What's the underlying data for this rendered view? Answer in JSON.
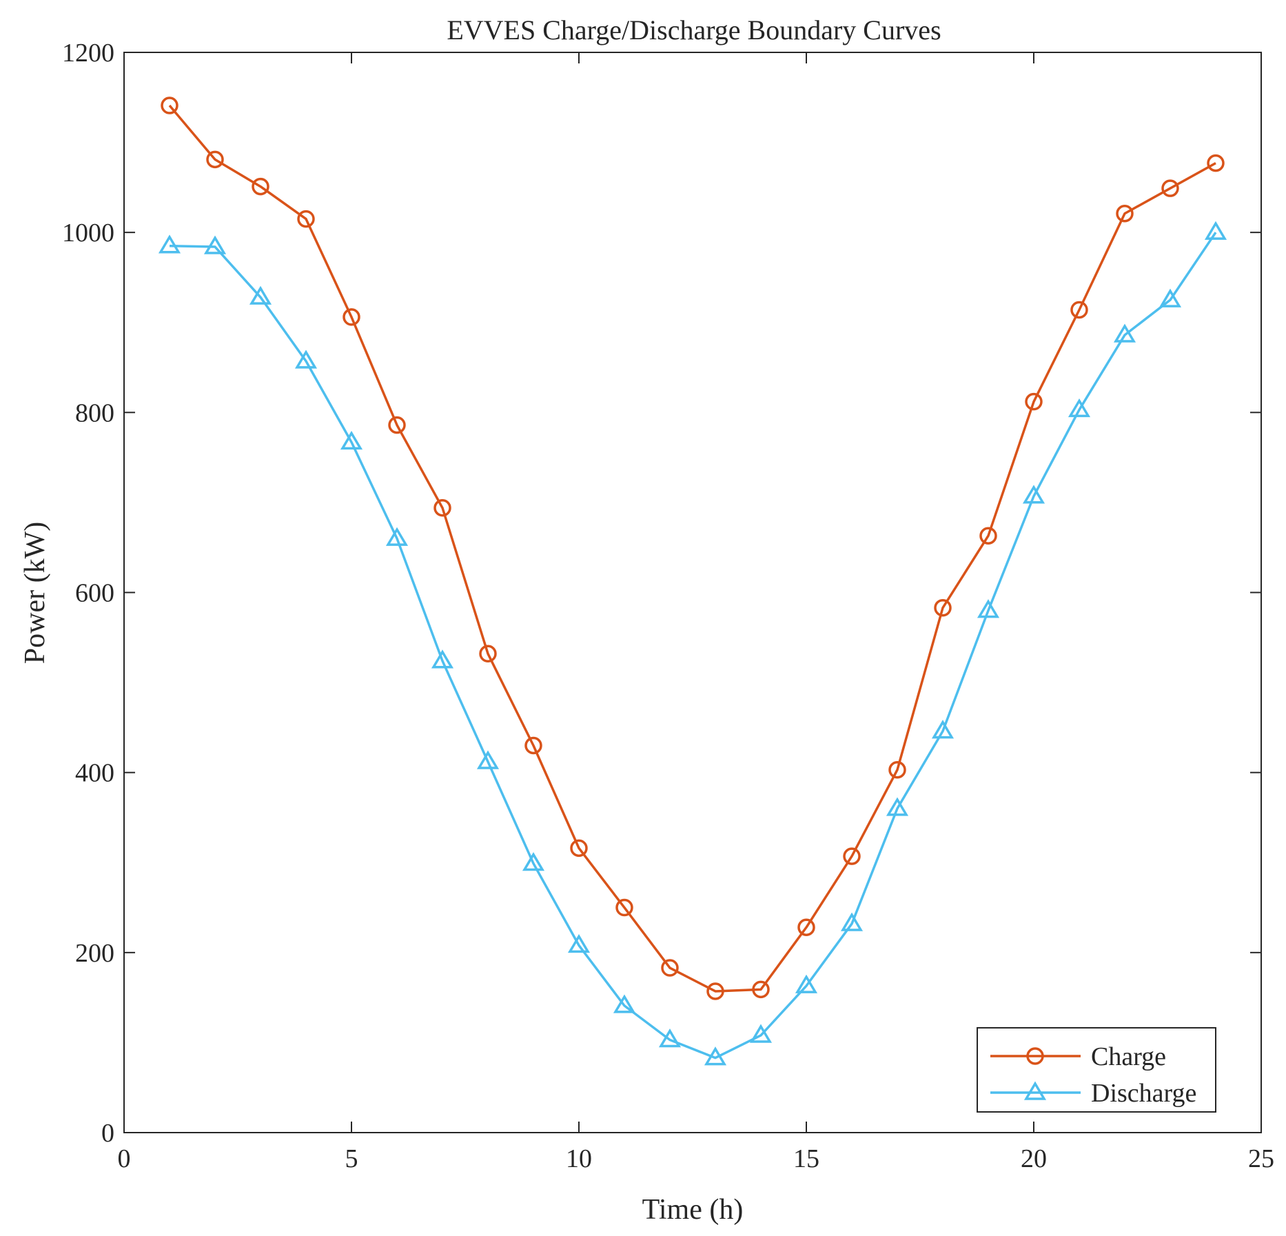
{
  "chart_data": {
    "type": "line",
    "title": "EVVES Charge/Discharge Boundary Curves",
    "xlabel": "Time (h)",
    "ylabel": "Power (kW)",
    "xlim": [
      0,
      25
    ],
    "ylim": [
      0,
      1200
    ],
    "xticks": [
      0,
      5,
      10,
      15,
      20,
      25
    ],
    "yticks": [
      0,
      200,
      400,
      600,
      800,
      1000,
      1200
    ],
    "grid": false,
    "legend_position": "bottom-right",
    "x": [
      1,
      2,
      3,
      4,
      5,
      6,
      7,
      8,
      9,
      10,
      11,
      12,
      13,
      14,
      15,
      16,
      17,
      18,
      19,
      20,
      21,
      22,
      23,
      24
    ],
    "series": [
      {
        "name": "Charge",
        "color": "#D95319",
        "marker": "circle",
        "values": [
          1141,
          1081,
          1051,
          1015,
          906,
          786,
          694,
          532,
          430,
          316,
          250,
          183,
          157,
          159,
          228,
          307,
          403,
          583,
          663,
          812,
          914,
          1021,
          1049,
          1077
        ]
      },
      {
        "name": "Discharge",
        "color": "#4DBEEE",
        "marker": "triangle",
        "values": [
          985,
          984,
          928,
          857,
          767,
          660,
          524,
          412,
          299,
          208,
          141,
          103,
          83,
          108,
          163,
          232,
          360,
          446,
          580,
          707,
          803,
          886,
          925,
          1000
        ]
      }
    ]
  }
}
